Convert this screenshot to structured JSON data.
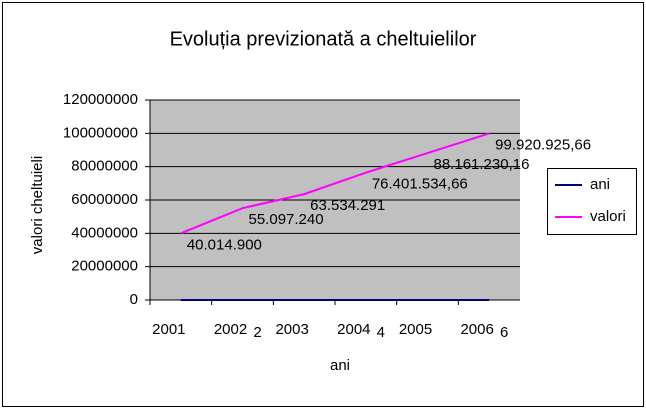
{
  "chart_data": {
    "type": "line",
    "title": "Evoluția previzionată a cheltuielilor",
    "x_label": "ani",
    "y_label": "valori cheltuieli",
    "categories": [
      null,
      "2",
      null,
      "4",
      null,
      "6"
    ],
    "series": [
      {
        "name": "ani",
        "color": "#000080",
        "values": [
          2001,
          2002,
          2003,
          2004,
          2005,
          2006
        ]
      },
      {
        "name": "valori",
        "color": "#ff00ff",
        "values": [
          40014900,
          55097240,
          63534291,
          76401534.66,
          88161230.16,
          99920925.66
        ],
        "value_labels": [
          "40.014.900",
          "55.097.240",
          "63.534.291",
          "76.401.534,66",
          "88.161.230,16",
          "99.920.925,66"
        ]
      }
    ],
    "ylim": [
      0,
      120000000
    ],
    "yticks": [
      0,
      20000000,
      40000000,
      60000000,
      80000000,
      100000000,
      120000000
    ],
    "grid": true,
    "legend": "right",
    "plot_background": "#c0c0c0"
  }
}
